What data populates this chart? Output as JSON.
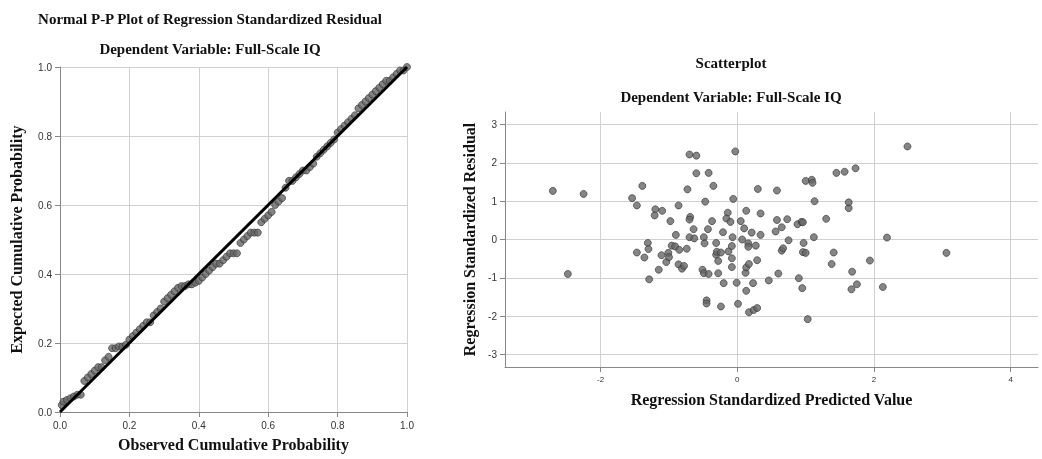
{
  "chart_data": [
    {
      "type": "scatter",
      "title": "Normal P-P Plot of Regression Standardized Residual",
      "subtitle": "Dependent Variable: Full-Scale IQ",
      "xlabel": "Observed Cumulative Probability",
      "ylabel": "Expected Cumulative Probability",
      "xlim": [
        0,
        1
      ],
      "ylim": [
        0,
        1
      ],
      "xticks": [
        {
          "value": 0,
          "label": "0.0"
        },
        0.2,
        0.4,
        0.6,
        0.8,
        {
          "value": 1,
          "label": "1.0"
        }
      ],
      "yticks": [
        {
          "value": 0,
          "label": "0.0"
        },
        0.2,
        0.4,
        0.6,
        0.8,
        {
          "value": 1,
          "label": "1.0"
        }
      ],
      "grid": true,
      "series": [
        {
          "marker": "circle",
          "color": "#666666",
          "x": [
            0.005,
            0.01,
            0.02,
            0.03,
            0.04,
            0.05,
            0.06,
            0.07,
            0.08,
            0.09,
            0.1,
            0.11,
            0.12,
            0.13,
            0.14,
            0.15,
            0.16,
            0.17,
            0.18,
            0.19,
            0.2,
            0.21,
            0.22,
            0.23,
            0.24,
            0.25,
            0.26,
            0.27,
            0.28,
            0.29,
            0.3,
            0.31,
            0.32,
            0.33,
            0.34,
            0.35,
            0.36,
            0.37,
            0.38,
            0.39,
            0.4,
            0.41,
            0.42,
            0.43,
            0.44,
            0.45,
            0.46,
            0.47,
            0.48,
            0.49,
            0.5,
            0.51,
            0.52,
            0.53,
            0.54,
            0.55,
            0.56,
            0.57,
            0.58,
            0.59,
            0.6,
            0.61,
            0.62,
            0.63,
            0.64,
            0.65,
            0.66,
            0.67,
            0.68,
            0.69,
            0.7,
            0.71,
            0.72,
            0.73,
            0.74,
            0.75,
            0.76,
            0.77,
            0.78,
            0.79,
            0.8,
            0.81,
            0.82,
            0.83,
            0.84,
            0.85,
            0.86,
            0.87,
            0.88,
            0.89,
            0.9,
            0.91,
            0.92,
            0.93,
            0.94,
            0.95,
            0.96,
            0.97,
            0.98,
            0.99,
            1.0
          ],
          "values": [
            0.02,
            0.03,
            0.035,
            0.04,
            0.045,
            0.05,
            0.05,
            0.09,
            0.1,
            0.11,
            0.12,
            0.13,
            0.13,
            0.15,
            0.16,
            0.185,
            0.185,
            0.19,
            0.19,
            0.195,
            0.21,
            0.22,
            0.23,
            0.24,
            0.25,
            0.26,
            0.26,
            0.28,
            0.29,
            0.3,
            0.32,
            0.33,
            0.34,
            0.35,
            0.36,
            0.365,
            0.365,
            0.37,
            0.37,
            0.375,
            0.38,
            0.39,
            0.4,
            0.41,
            0.42,
            0.43,
            0.43,
            0.44,
            0.45,
            0.46,
            0.46,
            0.46,
            0.49,
            0.5,
            0.51,
            0.52,
            0.52,
            0.52,
            0.55,
            0.56,
            0.57,
            0.58,
            0.6,
            0.61,
            0.62,
            0.65,
            0.67,
            0.67,
            0.68,
            0.69,
            0.7,
            0.7,
            0.71,
            0.72,
            0.74,
            0.75,
            0.76,
            0.77,
            0.78,
            0.79,
            0.81,
            0.82,
            0.83,
            0.84,
            0.85,
            0.86,
            0.88,
            0.89,
            0.9,
            0.91,
            0.92,
            0.93,
            0.94,
            0.95,
            0.96,
            0.96,
            0.97,
            0.98,
            0.99,
            0.99,
            1.0
          ]
        },
        {
          "type": "line",
          "marker": "none",
          "color": "#000000",
          "x": [
            0,
            1
          ],
          "values": [
            0,
            1
          ]
        }
      ]
    },
    {
      "type": "scatter",
      "title": "Scatterplot",
      "subtitle": "Dependent Variable: Full-Scale IQ",
      "xlabel": "Regression Standardized Predicted Value",
      "ylabel": "Regression Standardized Residual",
      "xlim": [
        -3.4,
        4.4
      ],
      "ylim": [
        -3.33,
        3.33
      ],
      "xticks": [
        -2,
        0,
        2,
        4
      ],
      "yticks": [
        -3,
        -2,
        -1,
        0,
        1,
        2,
        3
      ],
      "grid": true,
      "series": [
        {
          "marker": "circle",
          "color": "#666666",
          "x": [
            -2.7,
            -2.25,
            -2.48,
            -1.54,
            -1.47,
            -1.39,
            -1.47,
            -1.36,
            -1.29,
            -1.31,
            -1.3,
            -1.2,
            -1.21,
            -1.1,
            -1.11,
            -1.15,
            -1.04,
            -1.01,
            -1.0,
            -0.98,
            -0.96,
            -0.9,
            -0.91,
            -0.86,
            -0.85,
            -0.86,
            -0.81,
            -0.78,
            -0.74,
            -0.73,
            -0.7,
            -0.6,
            -0.69,
            -0.7,
            -0.7,
            -0.64,
            -0.63,
            -0.6,
            -0.49,
            -0.48,
            -0.47,
            -0.51,
            -0.49,
            -0.45,
            -0.45,
            -0.43,
            -0.42,
            -0.42,
            -0.35,
            -0.37,
            -0.31,
            -0.31,
            -0.3,
            -0.28,
            -0.28,
            -0.24,
            -0.24,
            -0.21,
            -0.2,
            -0.14,
            -0.16,
            -0.13,
            -0.1,
            -0.08,
            -0.08,
            -0.08,
            -0.07,
            -0.06,
            -0.03,
            -0.01,
            0.01,
            0.05,
            0.07,
            0.1,
            0.12,
            0.13,
            0.13,
            0.16,
            0.16,
            0.13,
            0.17,
            0.17,
            0.21,
            0.23,
            0.24,
            0.27,
            0.29,
            0.29,
            0.3,
            0.34,
            0.34,
            0.46,
            0.56,
            0.58,
            0.58,
            0.6,
            0.65,
            0.65,
            0.67,
            0.73,
            0.75,
            0.88,
            0.9,
            0.94,
            0.96,
            0.95,
            0.97,
            0.96,
            1.0,
            1.0,
            1.03,
            1.09,
            1.1,
            1.12,
            1.13,
            1.3,
            1.38,
            1.41,
            1.45,
            1.57,
            1.63,
            1.63,
            1.68,
            1.67,
            1.73,
            1.75,
            1.94,
            2.13,
            2.19,
            2.49,
            3.06
          ],
          "values": [
            1.27,
            1.19,
            -0.9,
            1.08,
            0.89,
            1.4,
            -0.34,
            -0.47,
            -1.04,
            -0.09,
            -0.25,
            0.79,
            0.63,
            0.75,
            -0.41,
            -0.79,
            -0.59,
            -0.35,
            -0.46,
            0.48,
            -0.16,
            0.12,
            -0.18,
            0.89,
            -0.27,
            -0.65,
            -0.76,
            -0.69,
            -0.24,
            1.31,
            2.22,
            2.19,
            0.59,
            0.52,
            0.06,
            0.27,
            0.03,
            1.73,
            0.06,
            -0.1,
            0.99,
            -0.79,
            -0.88,
            -1.59,
            -1.67,
            0.27,
            1.74,
            -0.9,
            1.4,
            0.48,
            -0.09,
            -0.4,
            -0.32,
            -0.56,
            -0.88,
            -0.34,
            -1.75,
            0.19,
            -1.14,
            0.7,
            0.55,
            -0.31,
            0.46,
            -0.17,
            -0.49,
            -0.72,
            0.06,
            1.06,
            2.3,
            -1.13,
            -1.68,
            0.48,
            0.0,
            0.29,
            -0.87,
            -0.73,
            0.75,
            -0.1,
            -0.19,
            -1.34,
            -0.64,
            -1.9,
            0.18,
            -1.14,
            -1.84,
            -0.16,
            -1.79,
            -0.54,
            1.32,
            0.68,
            0.12,
            -1.07,
            0.21,
            0.51,
            1.28,
            -0.89,
            0.32,
            -0.29,
            -0.23,
            0.53,
            -0.02,
            0.4,
            -1.01,
            0.46,
            0.45,
            -1.27,
            -0.09,
            -0.33,
            1.53,
            -0.35,
            -2.08,
            1.56,
            1.48,
            0.06,
            1.0,
            0.54,
            -0.64,
            -0.34,
            1.74,
            1.77,
            0.82,
            0.97,
            -0.84,
            -1.3,
            1.86,
            -1.17,
            -0.55,
            -1.24,
            0.05,
            2.43,
            -0.35
          ]
        }
      ]
    }
  ]
}
